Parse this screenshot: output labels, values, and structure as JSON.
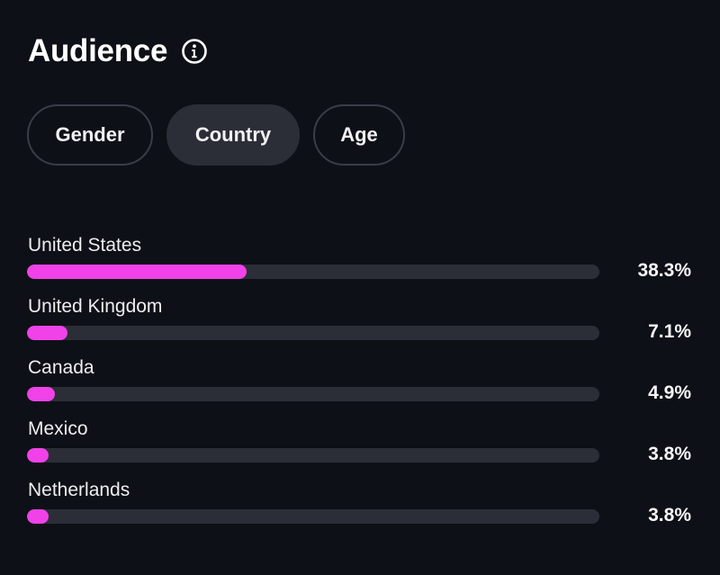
{
  "header": {
    "title": "Audience",
    "info_icon": "info-circle-icon"
  },
  "tabs": [
    {
      "label": "Gender",
      "active": false
    },
    {
      "label": "Country",
      "active": true
    },
    {
      "label": "Age",
      "active": false
    }
  ],
  "colors": {
    "background": "#0e1017",
    "bar_fill": "#f042e8",
    "bar_track": "#2b2e36"
  },
  "countries": [
    {
      "name": "United States",
      "percent_label": "38.3%",
      "percent": 38.3
    },
    {
      "name": "United Kingdom",
      "percent_label": "7.1%",
      "percent": 7.1
    },
    {
      "name": "Canada",
      "percent_label": "4.9%",
      "percent": 4.9
    },
    {
      "name": "Mexico",
      "percent_label": "3.8%",
      "percent": 3.8
    },
    {
      "name": "Netherlands",
      "percent_label": "3.8%",
      "percent": 3.8
    }
  ]
}
